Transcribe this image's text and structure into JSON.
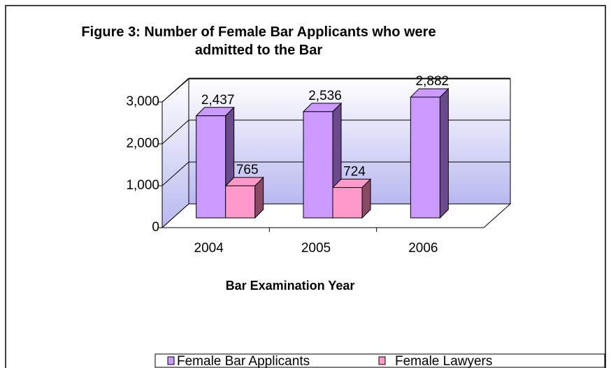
{
  "chart_data": {
    "type": "bar3d",
    "title": "Figure 3: Number of Female Bar Applicants who were admitted to the Bar",
    "x_label": "Bar Examination Year",
    "categories": [
      "2004",
      "2005",
      "2006"
    ],
    "series": [
      {
        "name": "Female Bar Applicants",
        "color": "#cc99ff",
        "side_color": "#6a4a8a",
        "values": [
          2437,
          2536,
          2882
        ],
        "value_labels": [
          "2,437",
          "2,536",
          "2,882"
        ]
      },
      {
        "name": "Female Lawyers",
        "color": "#ff99cc",
        "side_color": "#8a4a66",
        "values": [
          765,
          724,
          null
        ],
        "value_labels": [
          "765",
          "724",
          null
        ]
      }
    ],
    "ylim": [
      0,
      3000
    ],
    "yticks": [
      0,
      {
        "value": 1000,
        "label": "1,000"
      },
      {
        "value": 2000,
        "label": "2,000"
      },
      {
        "value": 3000,
        "label": "3,000"
      }
    ],
    "grid": true,
    "legend": "bottom"
  }
}
